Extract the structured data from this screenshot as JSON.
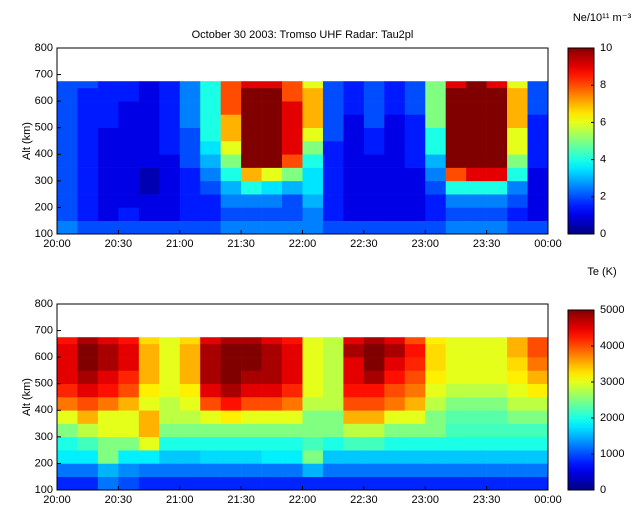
{
  "chart_data": [
    {
      "type": "heatmap",
      "title": "October 30 2003: Tromso UHF Radar: Tau2pl",
      "y_label": "Alt (km)",
      "colorbar_label": "Ne/10¹¹ m⁻³",
      "colormap": "jet",
      "xlim": [
        0,
        240
      ],
      "xticks": [
        {
          "value": 0,
          "label": "20:00"
        },
        {
          "value": 30,
          "label": "20:30"
        },
        {
          "value": 60,
          "label": "21:00"
        },
        {
          "value": 90,
          "label": "21:30"
        },
        {
          "value": 120,
          "label": "22:00"
        },
        {
          "value": 150,
          "label": "22:30"
        },
        {
          "value": 180,
          "label": "23:00"
        },
        {
          "value": 210,
          "label": "23:30"
        },
        {
          "value": 240,
          "label": "00:00"
        }
      ],
      "ylim": [
        100,
        800
      ],
      "yticks": [
        100,
        200,
        300,
        400,
        500,
        600,
        700,
        800
      ],
      "clim": [
        0,
        10
      ],
      "cticks": [
        0,
        2,
        4,
        6,
        8,
        10
      ],
      "x_bins": [
        0,
        10,
        20,
        30,
        40,
        50,
        60,
        70,
        80,
        90,
        100,
        110,
        120,
        130,
        140,
        150,
        160,
        170,
        180,
        190,
        200,
        210,
        220,
        230,
        240
      ],
      "y_bins": [
        100,
        150,
        200,
        250,
        300,
        350,
        400,
        450,
        500,
        550,
        600,
        650,
        675
      ],
      "values": [
        [
          2.5,
          2,
          2,
          2,
          2,
          2,
          2,
          2,
          2.5,
          2.5,
          2.5,
          2.5,
          2.5,
          2,
          2,
          2,
          2,
          2,
          2,
          2.5,
          2.5,
          2.5,
          2,
          2
        ],
        [
          2,
          1.5,
          1,
          1.5,
          1,
          1,
          1.5,
          1.5,
          2,
          2,
          2,
          2,
          2.5,
          1.5,
          1,
          1,
          1,
          1,
          1.5,
          2,
          2,
          2,
          1.5,
          1
        ],
        [
          2,
          1.5,
          1,
          1,
          1,
          1,
          1.5,
          1.5,
          2.5,
          2.5,
          2.5,
          2,
          3,
          1.5,
          1,
          1,
          1,
          1,
          1.5,
          2.5,
          2.5,
          2.5,
          2,
          1
        ],
        [
          2,
          1.5,
          1,
          1,
          0.5,
          1,
          1.5,
          2,
          3,
          4,
          3.5,
          3,
          3.5,
          1.5,
          1,
          1,
          1,
          1,
          2,
          4,
          4,
          4,
          2.5,
          1
        ],
        [
          2,
          1.5,
          1,
          1,
          0.5,
          1,
          1.5,
          2.5,
          4,
          7,
          6,
          5,
          3.5,
          1.5,
          1,
          1,
          1,
          1,
          2.5,
          8,
          9,
          9,
          4,
          1
        ],
        [
          2,
          1.5,
          1,
          1,
          1,
          1,
          2,
          3,
          5,
          10,
          10,
          8,
          4,
          1.5,
          1,
          1,
          1,
          1.5,
          3,
          10,
          10,
          10,
          5,
          1.5
        ],
        [
          2,
          1.5,
          1,
          1,
          1,
          1.5,
          2,
          3.5,
          6,
          10,
          10,
          9,
          5,
          1.5,
          1,
          1.5,
          1,
          1.5,
          4,
          10,
          10,
          10,
          6,
          1.5
        ],
        [
          2,
          1.5,
          1,
          1,
          1,
          1.5,
          2,
          4,
          7,
          10,
          10,
          9,
          6,
          2,
          1,
          1.5,
          1,
          1.5,
          4,
          10,
          10,
          10,
          6,
          1.5
        ],
        [
          2,
          1.5,
          1.5,
          1,
          1,
          1.5,
          2.5,
          4,
          7,
          10,
          10,
          9,
          7,
          2,
          1,
          2,
          1,
          1.5,
          5,
          10,
          10,
          10,
          7,
          1.5
        ],
        [
          2,
          1.5,
          1.5,
          1,
          1,
          1.5,
          2.5,
          4,
          8,
          10,
          10,
          9,
          7,
          2,
          1.5,
          2,
          1.5,
          2,
          5,
          10,
          10,
          10,
          7,
          2
        ],
        [
          2,
          1.5,
          1.5,
          1.5,
          1,
          1.5,
          2.5,
          4,
          8,
          10,
          10,
          8,
          7,
          2,
          1.5,
          2,
          1.5,
          2,
          5,
          10,
          10,
          10,
          7,
          2
        ],
        [
          2,
          2,
          1.5,
          1.5,
          1,
          1.5,
          2.5,
          4,
          8,
          9,
          9,
          8,
          6,
          2,
          1.5,
          2,
          1.5,
          2,
          5,
          9,
          10,
          9,
          6,
          2
        ]
      ]
    },
    {
      "type": "heatmap",
      "y_label": "Alt (km)",
      "colorbar_label": "Te (K)",
      "colormap": "jet",
      "xlim": [
        0,
        240
      ],
      "xticks": [
        {
          "value": 0,
          "label": "20:00"
        },
        {
          "value": 30,
          "label": "20:30"
        },
        {
          "value": 60,
          "label": "21:00"
        },
        {
          "value": 90,
          "label": "21:30"
        },
        {
          "value": 120,
          "label": "22:00"
        },
        {
          "value": 150,
          "label": "22:30"
        },
        {
          "value": 180,
          "label": "23:00"
        },
        {
          "value": 210,
          "label": "23:30"
        },
        {
          "value": 240,
          "label": "00:00"
        }
      ],
      "ylim": [
        100,
        800
      ],
      "yticks": [
        100,
        200,
        300,
        400,
        500,
        600,
        700,
        800
      ],
      "clim": [
        0,
        5000
      ],
      "cticks": [
        0,
        1000,
        2000,
        3000,
        4000,
        5000
      ],
      "x_bins": [
        0,
        10,
        20,
        30,
        40,
        50,
        60,
        70,
        80,
        90,
        100,
        110,
        120,
        130,
        140,
        150,
        160,
        170,
        180,
        190,
        200,
        210,
        220,
        230,
        240
      ],
      "y_bins": [
        100,
        150,
        200,
        250,
        300,
        350,
        400,
        450,
        500,
        550,
        600,
        650,
        675
      ],
      "values": [
        [
          800,
          800,
          1200,
          1000,
          800,
          800,
          800,
          800,
          800,
          800,
          800,
          800,
          800,
          800,
          800,
          800,
          800,
          800,
          800,
          800,
          800,
          800,
          800,
          800
        ],
        [
          1200,
          1200,
          1500,
          1300,
          1200,
          1200,
          1200,
          1200,
          1200,
          1200,
          1200,
          1200,
          1500,
          1200,
          1200,
          1200,
          1200,
          1200,
          1200,
          1200,
          1200,
          1200,
          1200,
          1200
        ],
        [
          1800,
          1800,
          2500,
          1800,
          1800,
          1600,
          1600,
          1700,
          1700,
          1700,
          1800,
          1800,
          2500,
          1600,
          1600,
          1600,
          1600,
          1600,
          1600,
          1600,
          1600,
          1600,
          1600,
          1600
        ],
        [
          2000,
          2200,
          2500,
          2500,
          3000,
          2000,
          2000,
          2000,
          2000,
          2000,
          2000,
          2000,
          2200,
          2000,
          2200,
          2200,
          2000,
          2000,
          2000,
          2000,
          2000,
          2000,
          2000,
          2000
        ],
        [
          2500,
          2800,
          3000,
          3000,
          3500,
          2500,
          2500,
          2500,
          2500,
          2500,
          2500,
          2500,
          2500,
          2500,
          2800,
          2800,
          2500,
          2500,
          2500,
          2200,
          2200,
          2200,
          2200,
          2200
        ],
        [
          3000,
          3500,
          3000,
          3000,
          3500,
          2800,
          2800,
          3000,
          3200,
          3000,
          3000,
          3000,
          2500,
          2500,
          3500,
          3500,
          3000,
          3000,
          2500,
          2300,
          2300,
          2300,
          2500,
          2500
        ],
        [
          3800,
          4000,
          3800,
          3500,
          3000,
          2800,
          3000,
          4000,
          4300,
          4000,
          4000,
          3800,
          2800,
          2800,
          4000,
          4000,
          3800,
          3500,
          2800,
          2500,
          2500,
          2500,
          2800,
          2800
        ],
        [
          4200,
          4500,
          4300,
          4000,
          3200,
          3000,
          3200,
          4500,
          4800,
          4500,
          4500,
          4200,
          3000,
          2800,
          4300,
          4300,
          4000,
          3800,
          3000,
          2800,
          2800,
          2800,
          3000,
          3200
        ],
        [
          4500,
          4800,
          4500,
          4200,
          3500,
          3000,
          3500,
          4800,
          5000,
          4800,
          4800,
          4500,
          3000,
          2800,
          4500,
          4800,
          4300,
          4000,
          3200,
          3000,
          3000,
          3000,
          3200,
          3500
        ],
        [
          4500,
          5000,
          4800,
          4500,
          3500,
          3000,
          3500,
          4800,
          5000,
          5000,
          4800,
          4500,
          3000,
          2800,
          4500,
          5000,
          4500,
          4200,
          3300,
          3000,
          3000,
          3000,
          3300,
          3800
        ],
        [
          4500,
          5000,
          4800,
          4500,
          3500,
          3000,
          3500,
          4800,
          5000,
          5000,
          4800,
          4500,
          3000,
          2800,
          4800,
          5000,
          4800,
          4300,
          3300,
          3000,
          3000,
          3000,
          3500,
          4000
        ],
        [
          4300,
          4800,
          4500,
          4300,
          3300,
          3000,
          3300,
          4500,
          4800,
          4800,
          4500,
          4300,
          3000,
          2800,
          4500,
          4800,
          4500,
          4000,
          3200,
          3000,
          3000,
          3000,
          3500,
          4000
        ]
      ]
    }
  ]
}
